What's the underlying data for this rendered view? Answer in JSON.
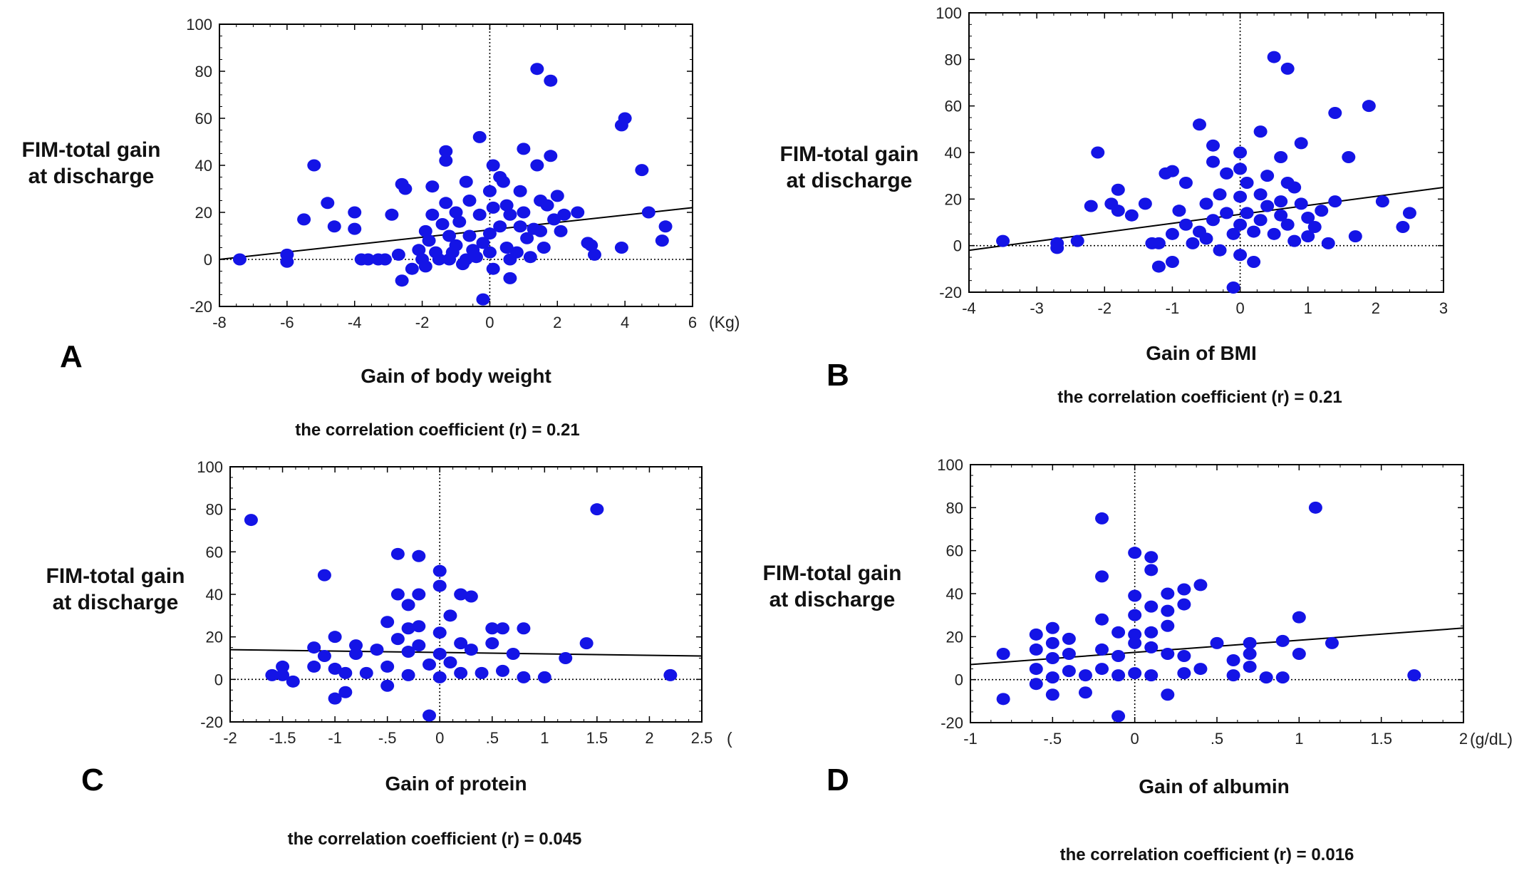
{
  "chart_data": [
    {
      "type": "scatter",
      "panel": "A",
      "ylabel": "FIM-total gain\nat discharge",
      "xlabel": "Gain of body weight",
      "x_unit": "(Kg)",
      "annotation": "the correlation coefficient (r) = 0.21",
      "xlim": [
        -8,
        6
      ],
      "ylim": [
        -20,
        100
      ],
      "xticks": [
        -8,
        -6,
        -4,
        -2,
        0,
        2,
        4,
        6
      ],
      "xtick_labels": [
        "-8",
        "-6",
        "-4",
        "-2",
        "0",
        "2",
        "4",
        "6"
      ],
      "yticks": [
        -20,
        0,
        20,
        40,
        60,
        80,
        100
      ],
      "ytick_labels": [
        "-20",
        "0",
        "20",
        "40",
        "60",
        "80",
        "100"
      ],
      "regression": {
        "x": [
          -8,
          6
        ],
        "y": [
          0,
          22
        ]
      },
      "reference_lines": {
        "x": 0,
        "y": 0
      },
      "points": [
        [
          -7.4,
          0
        ],
        [
          -6,
          2
        ],
        [
          -6,
          -1
        ],
        [
          -5.5,
          17
        ],
        [
          -5.2,
          40
        ],
        [
          -4.8,
          24
        ],
        [
          -4.6,
          14
        ],
        [
          -4,
          20
        ],
        [
          -4,
          13
        ],
        [
          -3.8,
          0
        ],
        [
          -3.6,
          0
        ],
        [
          -3.3,
          0
        ],
        [
          -3.1,
          0
        ],
        [
          -2.9,
          19
        ],
        [
          -2.6,
          32
        ],
        [
          -2.5,
          30
        ],
        [
          -2.7,
          2
        ],
        [
          -2.6,
          -9
        ],
        [
          -2.3,
          -4
        ],
        [
          -2.1,
          4
        ],
        [
          -2,
          0
        ],
        [
          -1.9,
          12
        ],
        [
          -1.9,
          -3
        ],
        [
          -1.8,
          8
        ],
        [
          -1.7,
          31
        ],
        [
          -1.7,
          19
        ],
        [
          -1.6,
          3
        ],
        [
          -1.5,
          0
        ],
        [
          -1.4,
          15
        ],
        [
          -1.3,
          46
        ],
        [
          -1.3,
          42
        ],
        [
          -1.3,
          24
        ],
        [
          -1.2,
          10
        ],
        [
          -1.2,
          0
        ],
        [
          -1.1,
          3
        ],
        [
          -1,
          20
        ],
        [
          -1,
          6
        ],
        [
          -0.9,
          16
        ],
        [
          -0.8,
          -2
        ],
        [
          -0.7,
          33
        ],
        [
          -0.7,
          0
        ],
        [
          -0.6,
          25
        ],
        [
          -0.6,
          10
        ],
        [
          -0.5,
          4
        ],
        [
          -0.4,
          1
        ],
        [
          -0.3,
          52
        ],
        [
          -0.3,
          19
        ],
        [
          -0.2,
          7
        ],
        [
          -0.2,
          -17
        ],
        [
          0,
          29
        ],
        [
          0,
          11
        ],
        [
          0,
          3
        ],
        [
          0.1,
          40
        ],
        [
          0.1,
          22
        ],
        [
          0.1,
          -4
        ],
        [
          0.3,
          35
        ],
        [
          0.3,
          14
        ],
        [
          0.4,
          33
        ],
        [
          0.5,
          23
        ],
        [
          0.5,
          5
        ],
        [
          0.6,
          19
        ],
        [
          0.6,
          0
        ],
        [
          0.6,
          -8
        ],
        [
          0.8,
          3
        ],
        [
          0.9,
          29
        ],
        [
          0.9,
          14
        ],
        [
          1,
          47
        ],
        [
          1,
          20
        ],
        [
          1.1,
          9
        ],
        [
          1.2,
          1
        ],
        [
          1.3,
          13
        ],
        [
          1.4,
          81
        ],
        [
          1.4,
          40
        ],
        [
          1.5,
          25
        ],
        [
          1.5,
          12
        ],
        [
          1.6,
          5
        ],
        [
          1.7,
          23
        ],
        [
          1.8,
          76
        ],
        [
          1.8,
          44
        ],
        [
          1.9,
          17
        ],
        [
          2,
          27
        ],
        [
          2.1,
          12
        ],
        [
          2.2,
          19
        ],
        [
          2.6,
          20
        ],
        [
          2.9,
          7
        ],
        [
          3,
          6
        ],
        [
          3.1,
          2
        ],
        [
          3.9,
          5
        ],
        [
          3.9,
          57
        ],
        [
          4,
          60
        ],
        [
          4.5,
          38
        ],
        [
          4.7,
          20
        ],
        [
          5.1,
          8
        ],
        [
          5.2,
          14
        ]
      ]
    },
    {
      "type": "scatter",
      "panel": "B",
      "ylabel": "FIM-total gain\nat discharge",
      "xlabel": "Gain of BMI",
      "annotation": "the correlation coefficient (r) = 0.21",
      "xlim": [
        -4,
        3
      ],
      "ylim": [
        -20,
        100
      ],
      "xticks": [
        -4,
        -3,
        -2,
        -1,
        0,
        1,
        2,
        3
      ],
      "xtick_labels": [
        "-4",
        "-3",
        "-2",
        "-1",
        "0",
        "1",
        "2",
        "3"
      ],
      "yticks": [
        -20,
        0,
        20,
        40,
        60,
        80,
        100
      ],
      "ytick_labels": [
        "-20",
        "0",
        "20",
        "40",
        "60",
        "80",
        "100"
      ],
      "regression": {
        "x": [
          -4,
          3
        ],
        "y": [
          -2,
          25
        ]
      },
      "reference_lines": {
        "x": 0,
        "y": 0
      },
      "points": [
        [
          -3.5,
          2
        ],
        [
          -2.7,
          1
        ],
        [
          -2.7,
          -1
        ],
        [
          -2.4,
          2
        ],
        [
          -2.2,
          17
        ],
        [
          -2.1,
          40
        ],
        [
          -1.9,
          18
        ],
        [
          -1.8,
          24
        ],
        [
          -1.8,
          15
        ],
        [
          -1.6,
          13
        ],
        [
          -1.4,
          18
        ],
        [
          -1.3,
          1
        ],
        [
          -1.2,
          -9
        ],
        [
          -1.2,
          1
        ],
        [
          -1.1,
          31
        ],
        [
          -1,
          32
        ],
        [
          -1,
          5
        ],
        [
          -1,
          -7
        ],
        [
          -0.9,
          15
        ],
        [
          -0.8,
          27
        ],
        [
          -0.8,
          9
        ],
        [
          -0.7,
          1
        ],
        [
          -0.6,
          52
        ],
        [
          -0.6,
          6
        ],
        [
          -0.5,
          18
        ],
        [
          -0.5,
          3
        ],
        [
          -0.4,
          43
        ],
        [
          -0.4,
          36
        ],
        [
          -0.4,
          11
        ],
        [
          -0.3,
          -2
        ],
        [
          -0.3,
          22
        ],
        [
          -0.2,
          31
        ],
        [
          -0.2,
          14
        ],
        [
          -0.1,
          5
        ],
        [
          -0.1,
          -18
        ],
        [
          0,
          40
        ],
        [
          0,
          33
        ],
        [
          0,
          21
        ],
        [
          0,
          9
        ],
        [
          0,
          -4
        ],
        [
          0.1,
          27
        ],
        [
          0.1,
          14
        ],
        [
          0.2,
          6
        ],
        [
          0.2,
          -7
        ],
        [
          0.3,
          49
        ],
        [
          0.3,
          22
        ],
        [
          0.3,
          11
        ],
        [
          0.4,
          30
        ],
        [
          0.4,
          17
        ],
        [
          0.5,
          81
        ],
        [
          0.5,
          5
        ],
        [
          0.6,
          38
        ],
        [
          0.6,
          19
        ],
        [
          0.6,
          13
        ],
        [
          0.7,
          76
        ],
        [
          0.7,
          27
        ],
        [
          0.7,
          9
        ],
        [
          0.8,
          25
        ],
        [
          0.8,
          2
        ],
        [
          0.9,
          18
        ],
        [
          0.9,
          44
        ],
        [
          1,
          12
        ],
        [
          1,
          4
        ],
        [
          1.1,
          8
        ],
        [
          1.2,
          15
        ],
        [
          1.3,
          1
        ],
        [
          1.4,
          57
        ],
        [
          1.4,
          19
        ],
        [
          1.6,
          38
        ],
        [
          1.7,
          4
        ],
        [
          1.9,
          60
        ],
        [
          2.1,
          19
        ],
        [
          2.4,
          8
        ],
        [
          2.5,
          14
        ]
      ]
    },
    {
      "type": "scatter",
      "panel": "C",
      "ylabel": "FIM-total gain\nat discharge",
      "xlabel": "Gain of protein",
      "x_unit": "(",
      "annotation": "the correlation coefficient (r) = 0.045",
      "xlim": [
        -2,
        2.5
      ],
      "ylim": [
        -20,
        100
      ],
      "xticks": [
        -2,
        -1.5,
        -1,
        -0.5,
        0,
        0.5,
        1,
        1.5,
        2,
        2.5
      ],
      "xtick_labels": [
        "-2",
        "-1.5",
        "-1",
        "-.5",
        "0",
        ".5",
        "1",
        "1.5",
        "2",
        "2.5"
      ],
      "yticks": [
        -20,
        0,
        20,
        40,
        60,
        80,
        100
      ],
      "ytick_labels": [
        "-20",
        "0",
        "20",
        "40",
        "60",
        "80",
        "100"
      ],
      "regression": {
        "x": [
          -2,
          2.5
        ],
        "y": [
          14,
          11
        ]
      },
      "reference_lines": {
        "x": 0,
        "y": 0
      },
      "points": [
        [
          -1.8,
          75
        ],
        [
          -1.6,
          2
        ],
        [
          -1.5,
          6
        ],
        [
          -1.5,
          2
        ],
        [
          -1.4,
          -1
        ],
        [
          -1.2,
          15
        ],
        [
          -1.2,
          6
        ],
        [
          -1.1,
          49
        ],
        [
          -1.1,
          11
        ],
        [
          -1,
          -9
        ],
        [
          -1,
          20
        ],
        [
          -1,
          5
        ],
        [
          -0.9,
          -6
        ],
        [
          -0.9,
          3
        ],
        [
          -0.8,
          12
        ],
        [
          -0.8,
          16
        ],
        [
          -0.7,
          3
        ],
        [
          -0.6,
          14
        ],
        [
          -0.5,
          27
        ],
        [
          -0.5,
          6
        ],
        [
          -0.5,
          -3
        ],
        [
          -0.4,
          59
        ],
        [
          -0.4,
          40
        ],
        [
          -0.4,
          19
        ],
        [
          -0.3,
          35
        ],
        [
          -0.3,
          24
        ],
        [
          -0.3,
          13
        ],
        [
          -0.3,
          2
        ],
        [
          -0.2,
          58
        ],
        [
          -0.2,
          40
        ],
        [
          -0.2,
          25
        ],
        [
          -0.2,
          16
        ],
        [
          -0.1,
          7
        ],
        [
          -0.1,
          -17
        ],
        [
          0,
          51
        ],
        [
          0,
          44
        ],
        [
          0,
          22
        ],
        [
          0,
          12
        ],
        [
          0,
          1
        ],
        [
          0.1,
          30
        ],
        [
          0.1,
          8
        ],
        [
          0.2,
          40
        ],
        [
          0.2,
          17
        ],
        [
          0.2,
          3
        ],
        [
          0.3,
          39
        ],
        [
          0.3,
          14
        ],
        [
          0.4,
          3
        ],
        [
          0.5,
          24
        ],
        [
          0.5,
          17
        ],
        [
          0.6,
          24
        ],
        [
          0.6,
          4
        ],
        [
          0.7,
          12
        ],
        [
          0.8,
          24
        ],
        [
          0.8,
          1
        ],
        [
          1,
          1
        ],
        [
          1.2,
          10
        ],
        [
          1.4,
          17
        ],
        [
          1.5,
          80
        ],
        [
          2.2,
          2
        ]
      ]
    },
    {
      "type": "scatter",
      "panel": "D",
      "ylabel": "FIM-total gain\nat discharge",
      "xlabel": "Gain of albumin",
      "x_unit": "(g/dL)",
      "annotation": "the correlation coefficient (r) = 0.016",
      "xlim": [
        -1,
        2
      ],
      "ylim": [
        -20,
        100
      ],
      "xticks": [
        -1,
        -0.5,
        0,
        0.5,
        1,
        1.5,
        2
      ],
      "xtick_labels": [
        "-1",
        "-.5",
        "0",
        ".5",
        "1",
        "1.5",
        "2"
      ],
      "yticks": [
        -20,
        0,
        20,
        40,
        60,
        80,
        100
      ],
      "ytick_labels": [
        "-20",
        "0",
        "20",
        "40",
        "60",
        "80",
        "100"
      ],
      "regression": {
        "x": [
          -1,
          2
        ],
        "y": [
          7,
          24
        ]
      },
      "reference_lines": {
        "x": 0,
        "y": 0
      },
      "points": [
        [
          -0.8,
          12
        ],
        [
          -0.8,
          -9
        ],
        [
          -0.6,
          21
        ],
        [
          -0.6,
          14
        ],
        [
          -0.6,
          5
        ],
        [
          -0.6,
          -2
        ],
        [
          -0.5,
          24
        ],
        [
          -0.5,
          17
        ],
        [
          -0.5,
          10
        ],
        [
          -0.5,
          1
        ],
        [
          -0.5,
          -7
        ],
        [
          -0.4,
          19
        ],
        [
          -0.4,
          12
        ],
        [
          -0.4,
          4
        ],
        [
          -0.3,
          -6
        ],
        [
          -0.3,
          2
        ],
        [
          -0.2,
          28
        ],
        [
          -0.2,
          14
        ],
        [
          -0.2,
          5
        ],
        [
          -0.2,
          75
        ],
        [
          -0.2,
          48
        ],
        [
          -0.1,
          22
        ],
        [
          -0.1,
          11
        ],
        [
          -0.1,
          2
        ],
        [
          -0.1,
          -17
        ],
        [
          0,
          59
        ],
        [
          0,
          39
        ],
        [
          0,
          30
        ],
        [
          0,
          21
        ],
        [
          0,
          17
        ],
        [
          0,
          3
        ],
        [
          0.1,
          57
        ],
        [
          0.1,
          51
        ],
        [
          0.1,
          34
        ],
        [
          0.1,
          22
        ],
        [
          0.1,
          15
        ],
        [
          0.1,
          2
        ],
        [
          0.2,
          40
        ],
        [
          0.2,
          32
        ],
        [
          0.2,
          25
        ],
        [
          0.2,
          12
        ],
        [
          0.2,
          -7
        ],
        [
          0.3,
          42
        ],
        [
          0.3,
          35
        ],
        [
          0.3,
          11
        ],
        [
          0.3,
          3
        ],
        [
          0.4,
          44
        ],
        [
          0.4,
          5
        ],
        [
          0.5,
          17
        ],
        [
          0.6,
          9
        ],
        [
          0.6,
          2
        ],
        [
          0.7,
          17
        ],
        [
          0.7,
          12
        ],
        [
          0.7,
          6
        ],
        [
          0.8,
          1
        ],
        [
          0.9,
          1
        ],
        [
          0.9,
          18
        ],
        [
          1,
          29
        ],
        [
          1,
          12
        ],
        [
          1.1,
          80
        ],
        [
          1.2,
          17
        ],
        [
          1.7,
          2
        ]
      ]
    }
  ],
  "style": {
    "point_color": "#1414e6",
    "line_color": "#000000",
    "frame_color": "#000000"
  }
}
